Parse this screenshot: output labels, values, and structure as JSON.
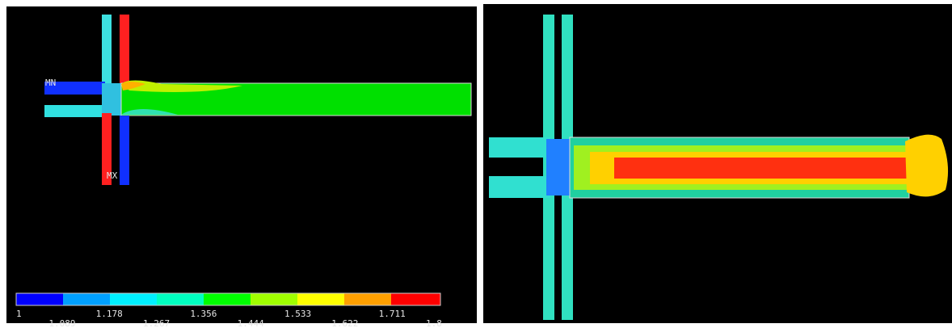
{
  "left_panel": {
    "min_label": "MN",
    "max_label": "MX",
    "legend": {
      "upper_labels": [
        "1",
        "1.178",
        "1.356",
        "1.533",
        "1.711"
      ],
      "lower_labels": [
        "1.089",
        "1.267",
        "1.444",
        "1.622",
        "1.8"
      ]
    }
  }
}
